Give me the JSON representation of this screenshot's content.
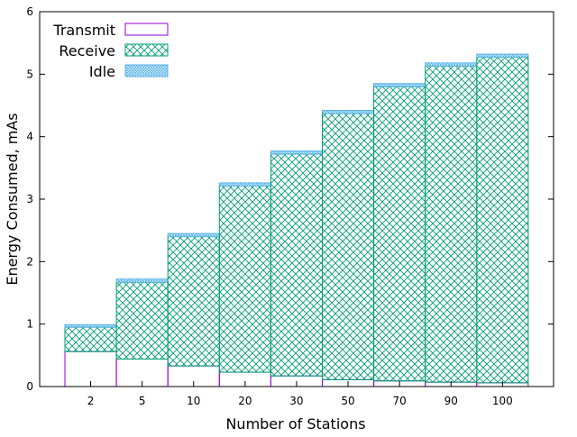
{
  "chart_data": {
    "type": "bar",
    "stacked": true,
    "title": "",
    "xlabel": "Number of Stations",
    "ylabel": "Energy Consumed, mAs",
    "ylim": [
      0,
      6
    ],
    "yticks": [
      "0",
      "1",
      "2",
      "3",
      "4",
      "5",
      "6"
    ],
    "grid": false,
    "legend_position": "top-left",
    "categories": [
      "2",
      "5",
      "10",
      "20",
      "30",
      "50",
      "70",
      "90",
      "100"
    ],
    "series": [
      {
        "name": "Transmit",
        "color": "#9400d3",
        "pattern": "none",
        "values": [
          0.56,
          0.44,
          0.33,
          0.23,
          0.17,
          0.11,
          0.09,
          0.07,
          0.06
        ]
      },
      {
        "name": "Receive",
        "color": "#009e73",
        "pattern": "crosshatch",
        "values": [
          0.39,
          1.23,
          2.07,
          2.98,
          3.55,
          4.26,
          4.71,
          5.06,
          5.21
        ]
      },
      {
        "name": "Idle",
        "color": "#56b4e9",
        "pattern": "fine-crosshatch",
        "values": [
          0.04,
          0.05,
          0.05,
          0.05,
          0.05,
          0.05,
          0.05,
          0.05,
          0.05
        ]
      }
    ]
  }
}
